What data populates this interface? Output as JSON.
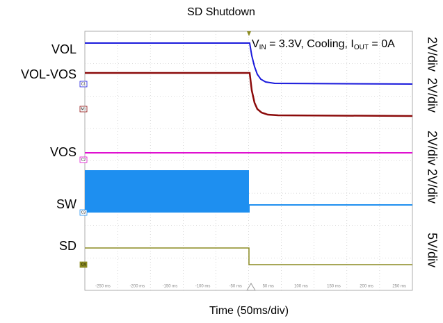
{
  "title": "SD Shutdown",
  "x_label": "Time (50ms/div)",
  "annotation": [
    "V",
    "IN",
    " = 3.3V, Cooling, I",
    "OUT",
    " = 0A"
  ],
  "channels": [
    {
      "name": "VOL",
      "scale": "2V/div",
      "marker": "C1"
    },
    {
      "name": "VOL-VOS",
      "scale": "2V/div",
      "marker": "M1"
    },
    {
      "name": "VOS",
      "scale": "2V/div",
      "marker": "C2"
    },
    {
      "name": "SW",
      "scale": "2V/div",
      "marker": "C3"
    },
    {
      "name": "SD",
      "scale": "5V/div",
      "marker": "C4"
    }
  ],
  "time_ticks": [
    "-250 ms",
    "-200 ms",
    "-150 ms",
    "-100 ms",
    "-50 ms",
    "50 ms",
    "100 ms",
    "150 ms",
    "200 ms",
    "250 ms"
  ]
}
